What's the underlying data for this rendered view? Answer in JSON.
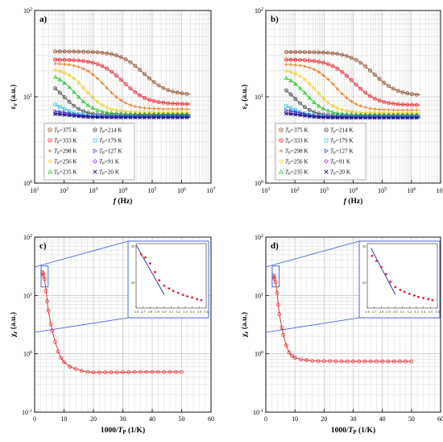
{
  "figure": {
    "panels": [
      "a)",
      "b)",
      "c)",
      "d)"
    ]
  },
  "chart_data": [
    {
      "id": "a",
      "type": "scatter",
      "label": "a)",
      "xlabel_main": "f",
      "xlabel_unit": " (Hz)",
      "ylabel_main": "ε",
      "ylabel_sub": "r",
      "ylabel_unit": " (a.u.)",
      "xscale": "log",
      "yscale": "log",
      "xlim": [
        10,
        10000000
      ],
      "ylim": [
        1,
        100
      ],
      "xticks": [
        "10¹",
        "10²",
        "10³",
        "10⁴",
        "10⁵",
        "10⁶",
        "10⁷"
      ],
      "yticks": [
        "10⁰",
        "10¹",
        "10²"
      ],
      "grid": true,
      "legend_position": "lower-left",
      "series": [
        {
          "name": "375 K",
          "color": "#8b4b2a",
          "marker": "ring-x",
          "eh": 33.5,
          "el": 10.5,
          "fc": 30000,
          "a": 0.55
        },
        {
          "name": "333 K",
          "color": "#e8202a",
          "marker": "ring-x",
          "eh": 27,
          "el": 8.2,
          "fc": 6000,
          "a": 0.55
        },
        {
          "name": "298 K",
          "color": "#f07a20",
          "marker": "plus",
          "eh": 24.5,
          "el": 7.2,
          "fc": 1500,
          "a": 0.6
        },
        {
          "name": "256 K",
          "color": "#f0d020",
          "marker": "diamond",
          "eh": 21.5,
          "el": 6.6,
          "fc": 350,
          "a": 0.65
        },
        {
          "name": "235 K",
          "color": "#22c022",
          "marker": "triangle-up",
          "eh": 19.5,
          "el": 6.3,
          "fc": 150,
          "a": 0.65
        },
        {
          "name": "214 K",
          "color": "#444444",
          "marker": "ring-x",
          "eh": 16.5,
          "el": 6.1,
          "fc": 70,
          "a": 0.7
        },
        {
          "name": "179 K",
          "color": "#20c0e8",
          "marker": "square",
          "eh": 9.5,
          "el": 5.95,
          "fc": 70,
          "a": 0.7
        },
        {
          "name": "127 K",
          "color": "#1e3cc8",
          "marker": "triangle-right",
          "eh": 7.0,
          "el": 5.85,
          "fc": 150,
          "a": 0.7
        },
        {
          "name": "91 K",
          "color": "#9a22c8",
          "marker": "diamond",
          "eh": 6.6,
          "el": 5.8,
          "fc": 150,
          "a": 0.7
        },
        {
          "name": "20 K",
          "color": "#0a1a7a",
          "marker": "x",
          "eh": 6.4,
          "el": 5.75,
          "fc": 150,
          "a": 0.7
        }
      ]
    },
    {
      "id": "b",
      "type": "scatter",
      "label": "b)",
      "xlabel_main": "f",
      "xlabel_unit": " (Hz)",
      "ylabel_main": "ε",
      "ylabel_sub": "r",
      "ylabel_unit": " (a.u.)",
      "xscale": "log",
      "yscale": "log",
      "xlim": [
        10,
        10000000
      ],
      "ylim": [
        1,
        100
      ],
      "xticks": [
        "10¹",
        "10²",
        "10³",
        "10⁴",
        "10⁵",
        "10⁶",
        "10⁷"
      ],
      "yticks": [
        "10⁰",
        "10¹",
        "10²"
      ],
      "grid": true,
      "legend_position": "lower-left",
      "series": [
        {
          "name": "375 K",
          "color": "#8b4b2a",
          "marker": "ring-x",
          "eh": 33,
          "el": 10.3,
          "fc": 30000,
          "a": 0.55
        },
        {
          "name": "333 K",
          "color": "#e8202a",
          "marker": "ring-x",
          "eh": 27,
          "el": 8.0,
          "fc": 6000,
          "a": 0.55
        },
        {
          "name": "298 K",
          "color": "#f07a20",
          "marker": "plus",
          "eh": 24,
          "el": 7.0,
          "fc": 1500,
          "a": 0.6
        },
        {
          "name": "256 K",
          "color": "#f0d020",
          "marker": "diamond",
          "eh": 21,
          "el": 6.5,
          "fc": 350,
          "a": 0.65
        },
        {
          "name": "235 K",
          "color": "#22c022",
          "marker": "triangle-up",
          "eh": 19,
          "el": 6.2,
          "fc": 150,
          "a": 0.65
        },
        {
          "name": "214 K",
          "color": "#444444",
          "marker": "ring-x",
          "eh": 15.5,
          "el": 6.0,
          "fc": 70,
          "a": 0.7
        },
        {
          "name": "179 K",
          "color": "#20c0e8",
          "marker": "square",
          "eh": 9.0,
          "el": 5.9,
          "fc": 70,
          "a": 0.7
        },
        {
          "name": "127 K",
          "color": "#1e3cc8",
          "marker": "triangle-right",
          "eh": 7.2,
          "el": 5.8,
          "fc": 150,
          "a": 0.7
        },
        {
          "name": "91 K",
          "color": "#9a22c8",
          "marker": "diamond",
          "eh": 6.7,
          "el": 5.75,
          "fc": 150,
          "a": 0.7
        },
        {
          "name": "20 K",
          "color": "#0a1a7a",
          "marker": "x",
          "eh": 6.5,
          "el": 5.7,
          "fc": 150,
          "a": 0.7
        }
      ]
    },
    {
      "id": "c",
      "type": "line",
      "label": "c)",
      "xlabel_main": "1000/",
      "xlabel_italic": "T",
      "xlabel_sub": "P",
      "xlabel_unit": " (1/K)",
      "ylabel_main": "χ",
      "ylabel_sub": "r",
      "ylabel_unit": " (a.u.)",
      "xscale": "linear",
      "yscale": "log",
      "xlim": [
        0,
        60
      ],
      "ylim": [
        0.1,
        100
      ],
      "xticks": [
        0,
        10,
        20,
        30,
        40,
        50,
        60
      ],
      "yticks": [
        "10⁻¹",
        "10⁰",
        "10¹",
        "10²"
      ],
      "grid": true,
      "color": "#e8202a",
      "x": [
        2.67,
        2.8,
        3.0,
        3.36,
        3.91,
        4.27,
        4.66,
        5.5,
        6,
        7,
        8,
        9,
        10,
        12,
        14,
        16,
        18,
        20,
        22,
        24,
        26,
        28,
        30,
        32,
        34,
        36,
        38,
        40,
        42,
        44,
        46,
        48,
        50
      ],
      "y": [
        25,
        24,
        22,
        19,
        12,
        8,
        5.5,
        3.2,
        2.5,
        1.6,
        1.1,
        0.85,
        0.72,
        0.6,
        0.55,
        0.51,
        0.49,
        0.48,
        0.48,
        0.48,
        0.48,
        0.48,
        0.485,
        0.485,
        0.49,
        0.49,
        0.49,
        0.49,
        0.49,
        0.49,
        0.49,
        0.49,
        0.49
      ],
      "inset": {
        "xlim": [
          2.6,
          3.6
        ],
        "ylim_ticks": [
          "30",
          "20"
        ],
        "xticks": [
          "2.6",
          "2.7",
          "2.8",
          "2.9",
          "3.0",
          "3.1",
          "3.2",
          "3.3",
          "3.4",
          "3.5",
          "3.6"
        ],
        "fit_line": [
          [
            2.6,
            30.5
          ],
          [
            3.0,
            17.5
          ]
        ],
        "x": [
          2.67,
          2.73,
          2.8,
          2.87,
          2.93,
          3.0,
          3.07,
          3.13,
          3.2,
          3.27,
          3.33,
          3.4,
          3.47,
          3.53
        ],
        "y": [
          27.5,
          26.5,
          24.8,
          22.5,
          20.5,
          19.3,
          18.7,
          18.2,
          17.8,
          17.4,
          17.1,
          16.9,
          16.6,
          16.4
        ]
      }
    },
    {
      "id": "d",
      "type": "line",
      "label": "d)",
      "xlabel_main": "1000/",
      "xlabel_italic": "T",
      "xlabel_sub": "P",
      "xlabel_unit": " (1/K)",
      "ylabel_main": "χ",
      "ylabel_sub": "r",
      "ylabel_unit": " (a.u.)",
      "xscale": "linear",
      "yscale": "log",
      "xlim": [
        0,
        60
      ],
      "ylim": [
        0.1,
        100
      ],
      "xticks": [
        0,
        10,
        20,
        30,
        40,
        50,
        60
      ],
      "yticks": [
        "10⁻¹",
        "10⁰",
        "10¹",
        "10²"
      ],
      "grid": true,
      "color": "#e8202a",
      "x": [
        2.67,
        2.8,
        3.0,
        3.36,
        3.91,
        4.27,
        4.66,
        5.5,
        6,
        7,
        8,
        9,
        10,
        12,
        14,
        16,
        18,
        20,
        22,
        24,
        26,
        28,
        30,
        32,
        34,
        36,
        38,
        40,
        42,
        44,
        46,
        48,
        50
      ],
      "y": [
        22,
        21,
        19.5,
        17,
        11,
        7,
        4.8,
        2.8,
        2.1,
        1.4,
        1.05,
        0.92,
        0.86,
        0.8,
        0.78,
        0.76,
        0.75,
        0.75,
        0.75,
        0.74,
        0.74,
        0.74,
        0.74,
        0.74,
        0.74,
        0.74,
        0.74,
        0.74,
        0.74,
        0.74,
        0.74,
        0.74,
        0.74
      ],
      "inset": {
        "xlim": [
          2.6,
          3.6
        ],
        "ylim_ticks": [
          "30",
          "20"
        ],
        "xticks": [
          "2.6",
          "2.7",
          "2.8",
          "2.9",
          "3.0",
          "3.1",
          "3.2",
          "3.3",
          "3.4",
          "3.5",
          "3.6"
        ],
        "fit_line": [
          [
            2.65,
            29.5
          ],
          [
            3.0,
            17.5
          ]
        ],
        "x": [
          2.67,
          2.73,
          2.8,
          2.87,
          2.93,
          3.0,
          3.07,
          3.13,
          3.2,
          3.27,
          3.33,
          3.4,
          3.47,
          3.53
        ],
        "y": [
          27,
          25.5,
          23.8,
          22,
          20.2,
          19.0,
          18.4,
          18.0,
          17.6,
          17.3,
          17.0,
          16.8,
          16.6,
          16.4
        ]
      }
    }
  ]
}
